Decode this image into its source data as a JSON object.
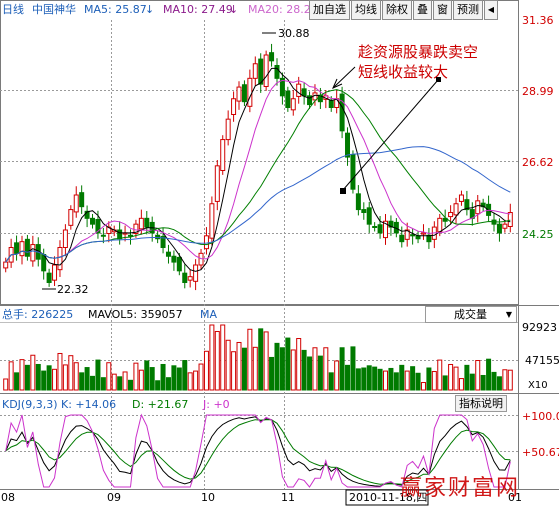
{
  "header": {
    "period": "日线",
    "stock_name": "中国神华",
    "ma5_label": "MA5: 25.87",
    "ma10_label": "MA10: 27.49",
    "ma20_label": "MA20: 28.26",
    "arrow": "↓"
  },
  "toolbar": {
    "buttons": [
      "加自选",
      "均线",
      "除权",
      "叠",
      "窗",
      "预测"
    ],
    "arrow": "◀"
  },
  "annotation": {
    "line1": "趁资源股暴跌卖空",
    "line2": "短线收益较大"
  },
  "price_axis": {
    "ticks": [
      "31.36",
      "28.99",
      "26.62",
      "24.25"
    ]
  },
  "price_labels": {
    "high": "30.88",
    "low": "22.32"
  },
  "volume": {
    "header": "总手: 226225",
    "mavol5": "MAVOL5: 359057",
    "ma_cut": "MA",
    "select_label": "成交量",
    "axis": [
      "92923",
      "47155",
      "X10"
    ]
  },
  "kdj": {
    "header": "KDJ(9,3,3)",
    "k": "K: +14.06",
    "d": "D: +21.67",
    "j": "J: +0",
    "button": "指标说明",
    "axis": [
      "+100.0",
      "+50.67"
    ]
  },
  "x_axis": {
    "labels": [
      "08",
      "09",
      "10",
      "11",
      "01"
    ],
    "cursor_date": "2010-11-18,四"
  },
  "watermark": "赢家财富网",
  "colors": {
    "up": "#d10000",
    "down": "#007a00",
    "ma5": "#000000",
    "ma10": "#cc33cc",
    "ma20": "#007f00",
    "ma60": "#3366cc",
    "label_blue": "#1d5fb8",
    "label_pink": "#cc66cc",
    "annotation": "#cc0000"
  },
  "chart_data": {
    "type": "candlestick",
    "series_close": [
      23.3,
      23.8,
      23.6,
      24.0,
      23.5,
      23.9,
      23.4,
      23.0,
      22.6,
      23.2,
      23.8,
      24.4,
      25.1,
      25.6,
      25.2,
      24.8,
      24.6,
      24.3,
      24.2,
      24.5,
      24.4,
      24.1,
      24.3,
      24.2,
      24.6,
      24.8,
      24.5,
      24.3,
      24.1,
      23.8,
      23.5,
      23.3,
      23.0,
      22.6,
      22.8,
      23.2,
      23.6,
      24.2,
      25.3,
      26.6,
      27.5,
      28.2,
      28.9,
      29.3,
      28.8,
      29.6,
      30.1,
      29.4,
      30.4,
      30.2,
      29.6,
      29.0,
      28.6,
      28.9,
      29.4,
      29.0,
      28.7,
      29.1,
      28.8,
      29.0,
      28.6,
      28.9,
      27.8,
      26.9,
      25.8,
      25.1,
      25.0,
      24.6,
      24.5,
      24.3,
      24.7,
      24.5,
      24.3,
      24.0,
      24.4,
      24.2,
      24.1,
      24.3,
      24.0,
      24.5,
      24.8,
      24.7,
      25.0,
      25.3,
      25.6,
      25.1,
      24.8,
      25.4,
      25.2,
      24.9,
      24.6,
      24.3,
      24.6,
      25.0
    ],
    "ylim": [
      22.0,
      31.6
    ]
  }
}
